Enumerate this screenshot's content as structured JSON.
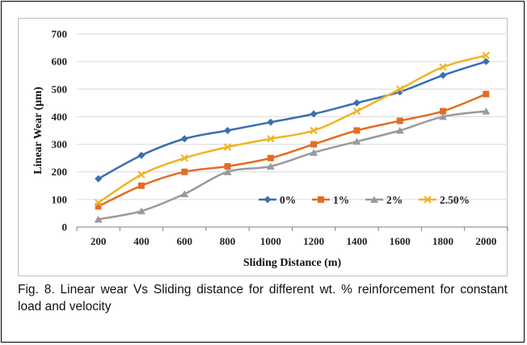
{
  "caption": "Fig. 8. Linear wear Vs Sliding distance for different wt. % reinforcement for constant load and velocity",
  "chart_data": {
    "type": "line",
    "title": "",
    "xlabel": "Sliding Distance (m)",
    "ylabel": "Linear Wear (µm)",
    "x": [
      200,
      400,
      600,
      800,
      1000,
      1200,
      1400,
      1600,
      1800,
      2000
    ],
    "ylim": [
      0,
      700
    ],
    "yticks": [
      0,
      100,
      200,
      300,
      400,
      500,
      600,
      700
    ],
    "grid": "horizontal",
    "legend_position": "inside-lower-right",
    "series": [
      {
        "name": "0%",
        "color": "#3a6fb0",
        "marker": "diamond",
        "values": [
          175,
          260,
          320,
          350,
          380,
          410,
          450,
          490,
          550,
          600
        ]
      },
      {
        "name": "1%",
        "color": "#e46c25",
        "marker": "square",
        "values": [
          75,
          150,
          200,
          220,
          250,
          300,
          350,
          385,
          420,
          482
        ]
      },
      {
        "name": "2%",
        "color": "#9a9a9a",
        "marker": "triangle",
        "values": [
          28,
          58,
          120,
          200,
          220,
          270,
          310,
          350,
          400,
          420
        ]
      },
      {
        "name": "2.50%",
        "color": "#f0b323",
        "marker": "x",
        "values": [
          88,
          190,
          250,
          290,
          320,
          350,
          420,
          500,
          580,
          622
        ]
      }
    ]
  }
}
